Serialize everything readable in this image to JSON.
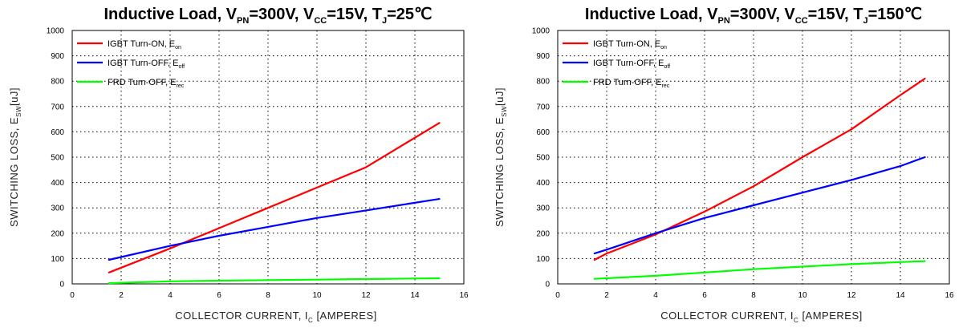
{
  "chart_data": [
    {
      "type": "line",
      "title": {
        "t1": "Inductive Load, V",
        "s1": "PN",
        "t2": "=300V, V",
        "s2": "CC",
        "t3": "=15V, T",
        "s3": "J",
        "t4": "=25℃"
      },
      "xlabel": {
        "main": "COLLECTOR CURRENT, I",
        "sub": "C",
        "tail": " [AMPERES]"
      },
      "ylabel": {
        "main": "SWITCHING LOSS, E",
        "sub": "SW",
        "tail": "[uJ]"
      },
      "xlim": [
        0,
        16
      ],
      "ylim": [
        0,
        1000
      ],
      "xticks": [
        0,
        2,
        4,
        6,
        8,
        10,
        12,
        14,
        16
      ],
      "yticks": [
        0,
        100,
        200,
        300,
        400,
        500,
        600,
        700,
        800,
        900,
        1000
      ],
      "grid": true,
      "legend_position": "top-left",
      "series": [
        {
          "name": "IGBT Turn-ON, E",
          "name_sub": "on",
          "color": "#ff0000",
          "x": [
            1.5,
            4,
            6,
            8,
            10,
            12,
            15
          ],
          "y": [
            45,
            140,
            220,
            300,
            380,
            460,
            635
          ]
        },
        {
          "name": "IGBT Turn-OFF, E",
          "name_sub": "off",
          "color": "#0000ff",
          "x": [
            1.5,
            4,
            6,
            8,
            10,
            12,
            15
          ],
          "y": [
            95,
            150,
            190,
            225,
            260,
            290,
            335
          ]
        },
        {
          "name": "FRD Turn-OFF, E",
          "name_sub": "rec",
          "color": "#00ff00",
          "x": [
            1.5,
            4,
            8,
            12,
            15
          ],
          "y": [
            3,
            10,
            15,
            19,
            22
          ]
        }
      ]
    },
    {
      "type": "line",
      "title": {
        "t1": "Inductive Load, V",
        "s1": "PN",
        "t2": "=300V, V",
        "s2": "CC",
        "t3": "=15V, T",
        "s3": "J",
        "t4": "=150℃"
      },
      "xlabel": {
        "main": "COLLECTOR CURRENT, I",
        "sub": "C",
        "tail": " [AMPERES]"
      },
      "ylabel": {
        "main": "SWITCHING LOSS, E",
        "sub": "SW",
        "tail": "[uJ]"
      },
      "xlim": [
        0,
        16
      ],
      "ylim": [
        0,
        1000
      ],
      "xticks": [
        0,
        2,
        4,
        6,
        8,
        10,
        12,
        14,
        16
      ],
      "yticks": [
        0,
        100,
        200,
        300,
        400,
        500,
        600,
        700,
        800,
        900,
        1000
      ],
      "grid": true,
      "legend_position": "top-left",
      "series": [
        {
          "name": "IGBT Turn-ON, E",
          "name_sub": "on",
          "color": "#ff0000",
          "x": [
            1.5,
            2,
            4,
            6,
            8,
            10,
            12,
            14,
            15
          ],
          "y": [
            95,
            120,
            195,
            285,
            385,
            500,
            610,
            745,
            810
          ]
        },
        {
          "name": "IGBT Turn-OFF, E",
          "name_sub": "off",
          "color": "#0000ff",
          "x": [
            1.5,
            2,
            4,
            6,
            8,
            10,
            12,
            14,
            15
          ],
          "y": [
            120,
            135,
            200,
            260,
            310,
            360,
            410,
            465,
            500
          ]
        },
        {
          "name": "FRD Turn-OFF, E",
          "name_sub": "rec",
          "color": "#00ff00",
          "x": [
            1.5,
            4,
            6,
            8,
            10,
            12,
            14,
            15
          ],
          "y": [
            20,
            32,
            45,
            58,
            68,
            78,
            86,
            90
          ]
        }
      ]
    }
  ]
}
